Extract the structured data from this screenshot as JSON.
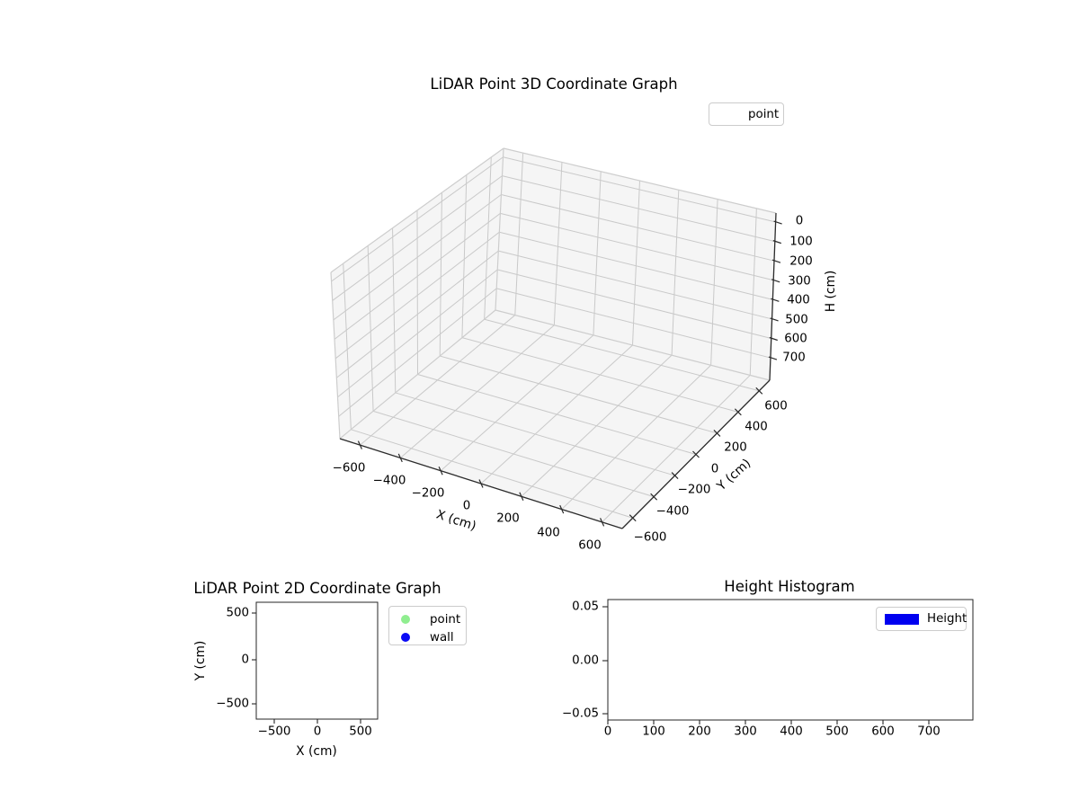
{
  "plot3d": {
    "title": "LiDAR Point 3D Coordinate Graph",
    "xlabel": "X (cm)",
    "ylabel": "Y (cm)",
    "zlabel": "H (cm)",
    "legend": {
      "items": [
        {
          "label": "point",
          "marker": "none"
        }
      ]
    },
    "x_tick_labels": [
      "−600",
      "−400",
      "−200",
      "0",
      "200",
      "400",
      "600"
    ],
    "y_tick_labels": [
      "−600",
      "−400",
      "−200",
      "0",
      "200",
      "400",
      "600"
    ],
    "z_tick_labels": [
      "0",
      "100",
      "200",
      "300",
      "400",
      "500",
      "600",
      "700"
    ]
  },
  "plot2d": {
    "title": "LiDAR Point 2D Coordinate Graph",
    "xlabel": "X (cm)",
    "ylabel": "Y (cm)",
    "legend": {
      "items": [
        {
          "label": "point",
          "color": "#90ee90"
        },
        {
          "label": "wall",
          "color": "#0b0bf5"
        }
      ]
    },
    "x_tick_labels": [
      "−500",
      "0",
      "500"
    ],
    "y_tick_labels": [
      "500",
      "0",
      "−500"
    ]
  },
  "hist": {
    "title": "Height Histogram",
    "legend": {
      "items": [
        {
          "label": "Height",
          "color": "#0000f0"
        }
      ]
    },
    "x_tick_labels": [
      "0",
      "100",
      "200",
      "300",
      "400",
      "500",
      "600",
      "700"
    ],
    "y_tick_labels": [
      "0.05",
      "0.00",
      "−0.05"
    ]
  },
  "chart_data": [
    {
      "type": "scatter",
      "projection": "3d",
      "title": "LiDAR Point 3D Coordinate Graph",
      "xlabel": "X (cm)",
      "ylabel": "Y (cm)",
      "zlabel": "H (cm)",
      "x_ticks": [
        -600,
        -400,
        -200,
        0,
        200,
        400,
        600
      ],
      "y_ticks": [
        -600,
        -400,
        -200,
        0,
        200,
        400,
        600
      ],
      "z_ticks": [
        0,
        100,
        200,
        300,
        400,
        500,
        600,
        700
      ],
      "xlim": [
        -700,
        700
      ],
      "ylim": [
        -700,
        700
      ],
      "z_axis_inverted": true,
      "grid": true,
      "legend_entries": [
        "point"
      ],
      "series": [
        {
          "name": "point",
          "points": []
        }
      ]
    },
    {
      "type": "scatter",
      "title": "LiDAR Point 2D Coordinate Graph",
      "xlabel": "X (cm)",
      "ylabel": "Y (cm)",
      "x_ticks": [
        -500,
        0,
        500
      ],
      "y_ticks": [
        -500,
        0,
        500
      ],
      "grid": false,
      "legend_entries": [
        "point",
        "wall"
      ],
      "series": [
        {
          "name": "point",
          "color": "#90ee90",
          "points": []
        },
        {
          "name": "wall",
          "color": "#0b0bf5",
          "points": []
        }
      ]
    },
    {
      "type": "histogram",
      "title": "Height Histogram",
      "x_ticks": [
        0,
        100,
        200,
        300,
        400,
        500,
        600,
        700
      ],
      "y_ticks": [
        -0.05,
        0.0,
        0.05
      ],
      "xlim": [
        0,
        793
      ],
      "ylim": [
        -0.055,
        0.052
      ],
      "grid": false,
      "legend_entries": [
        "Height"
      ],
      "series": [
        {
          "name": "Height",
          "color": "#0000f0",
          "values": []
        }
      ]
    }
  ]
}
